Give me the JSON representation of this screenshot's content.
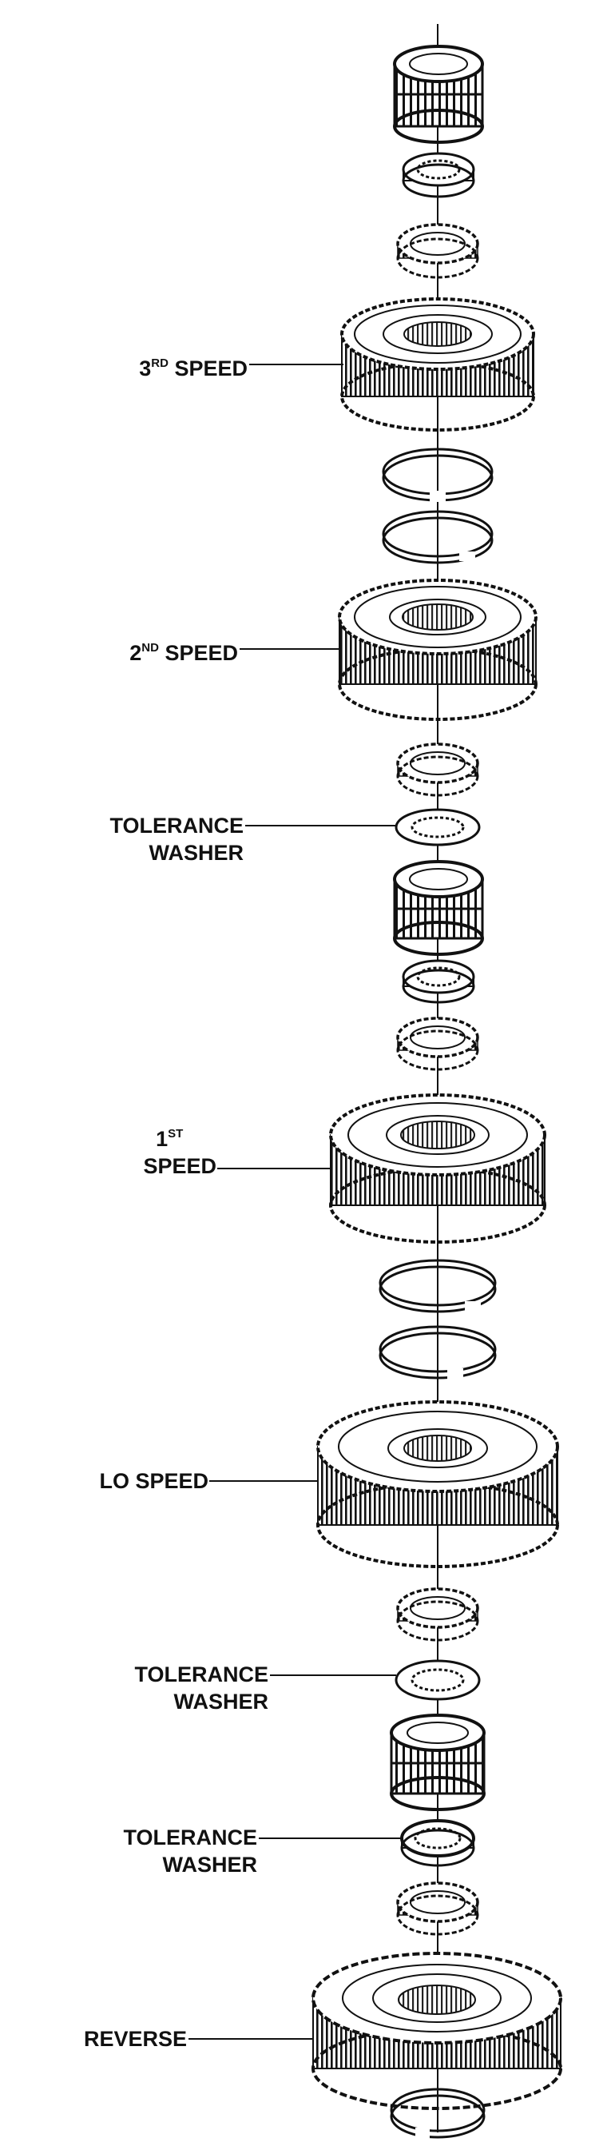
{
  "figure": {
    "labels": {
      "third_speed": {
        "main": "3",
        "sup": "RD",
        "rest": " SPEED"
      },
      "second_speed": {
        "main": "2",
        "sup": "ND",
        "rest": " SPEED"
      },
      "tolerance_washer_1": {
        "line1": "TOLERANCE",
        "line2": "WASHER"
      },
      "first_speed": {
        "main": "1",
        "sup": "ST",
        "line2": "SPEED"
      },
      "lo_speed": {
        "text": "LO SPEED"
      },
      "tolerance_washer_2": {
        "line1": "TOLERANCE",
        "line2": "WASHER"
      },
      "tolerance_washer_3": {
        "line1": "TOLERANCE",
        "line2": "WASHER"
      },
      "reverse": {
        "text": "REVERSE"
      }
    }
  }
}
